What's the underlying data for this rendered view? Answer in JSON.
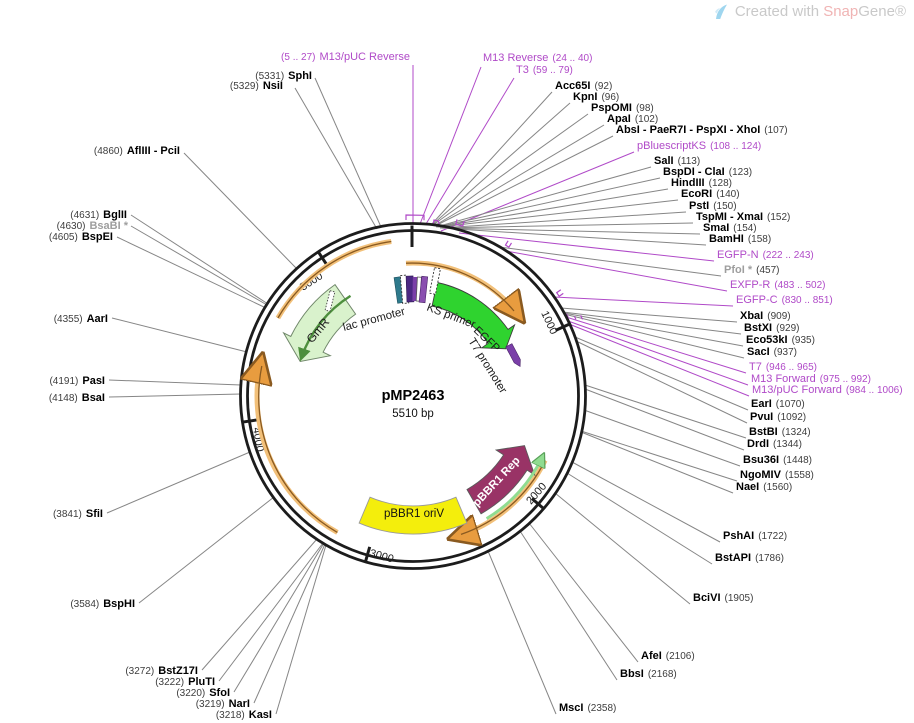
{
  "watermark": {
    "text": "Created with ",
    "brand1": "Snap",
    "brand2": "Gene®"
  },
  "plasmid": {
    "name": "pMP2463",
    "size": "5510 bp"
  },
  "ticks": [
    "1000",
    "2000",
    "3000",
    "4000",
    "5000"
  ],
  "features": {
    "gmr": "GmR",
    "lac_promoter": "lac promoter",
    "ks_primer": "KS primer",
    "egfp": "EGFP",
    "t7_promoter": "T7 promoter",
    "pbbr1_oriv": "pBBR1 oriV",
    "pbbr1_rep": "pBBR1 Rep"
  },
  "colors": {
    "primer_purple": "#b04ac8",
    "egfp_green": "#2fd32f",
    "gmr_green": "#d9f2cc",
    "oriv_yellow": "#f4ee0c",
    "rep_maroon": "#993366",
    "orange_orf": "#f2c079",
    "promoter_purple": "#7a3fa8",
    "teal_bar": "#2e7a8c",
    "ring_black": "#1c1c1c"
  },
  "sites": [
    {
      "name": "M13 Reverse",
      "pos": "(24 .. 40)",
      "kind": "primer"
    },
    {
      "name": "T3",
      "pos": "(59 .. 79)",
      "kind": "primer"
    },
    {
      "name": "Acc65I",
      "pos": "(92)"
    },
    {
      "name": "KpnI",
      "pos": "(96)"
    },
    {
      "name": "PspOMI",
      "pos": "(98)"
    },
    {
      "name": "ApaI",
      "pos": "(102)"
    },
    {
      "name": "AbsI - PaeR7I - PspXI - XhoI",
      "pos": "(107)"
    },
    {
      "name": "pBluescriptKS",
      "pos": "(108 .. 124)",
      "kind": "primer"
    },
    {
      "name": "SalI",
      "pos": "(113)"
    },
    {
      "name": "BspDI - ClaI",
      "pos": "(123)"
    },
    {
      "name": "HindIII",
      "pos": "(128)"
    },
    {
      "name": "EcoRI",
      "pos": "(140)"
    },
    {
      "name": "PstI",
      "pos": "(150)"
    },
    {
      "name": "TspMI - XmaI",
      "pos": "(152)"
    },
    {
      "name": "SmaI",
      "pos": "(154)"
    },
    {
      "name": "BamHI",
      "pos": "(158)"
    },
    {
      "name": "EGFP-N",
      "pos": "(222 .. 243)",
      "kind": "primer"
    },
    {
      "name": "PfoI *",
      "pos": "(457)",
      "kind": "muted"
    },
    {
      "name": "EXFP-R",
      "pos": "(483 .. 502)",
      "kind": "primer"
    },
    {
      "name": "EGFP-C",
      "pos": "(830 .. 851)",
      "kind": "primer"
    },
    {
      "name": "XbaI",
      "pos": "(909)"
    },
    {
      "name": "BstXI",
      "pos": "(929)"
    },
    {
      "name": "Eco53kI",
      "pos": "(935)"
    },
    {
      "name": "SacI",
      "pos": "(937)"
    },
    {
      "name": "T7",
      "pos": "(946 .. 965)",
      "kind": "primer"
    },
    {
      "name": "M13 Forward",
      "pos": "(975 .. 992)",
      "kind": "primer"
    },
    {
      "name": "M13/pUC Forward",
      "pos": "(984 .. 1006)",
      "kind": "primer"
    },
    {
      "name": "EarI",
      "pos": "(1070)"
    },
    {
      "name": "PvuI",
      "pos": "(1092)"
    },
    {
      "name": "BstBI",
      "pos": "(1324)"
    },
    {
      "name": "DrdI",
      "pos": "(1344)"
    },
    {
      "name": "Bsu36I",
      "pos": "(1448)"
    },
    {
      "name": "NgoMIV",
      "pos": "(1558)"
    },
    {
      "name": "NaeI",
      "pos": "(1560)"
    },
    {
      "name": "PshAI",
      "pos": "(1722)"
    },
    {
      "name": "BstAPI",
      "pos": "(1786)"
    },
    {
      "name": "BciVI",
      "pos": "(1905)"
    },
    {
      "name": "AfeI",
      "pos": "(2106)"
    },
    {
      "name": "BbsI",
      "pos": "(2168)"
    },
    {
      "name": "MscI",
      "pos": "(2358)"
    },
    {
      "name": "KasI",
      "pos": "(3218)"
    },
    {
      "name": "NarI",
      "pos": "(3219)"
    },
    {
      "name": "SfoI",
      "pos": "(3220)"
    },
    {
      "name": "PluTI",
      "pos": "(3222)"
    },
    {
      "name": "BstZ17I",
      "pos": "(3272)"
    },
    {
      "name": "BspHI",
      "pos": "(3584)"
    },
    {
      "name": "SfiI",
      "pos": "(3841)"
    },
    {
      "name": "BsaI",
      "pos": "(4148)"
    },
    {
      "name": "PasI",
      "pos": "(4191)"
    },
    {
      "name": "AarI",
      "pos": "(4355)"
    },
    {
      "name": "BspEI",
      "pos": "(4605)"
    },
    {
      "name": "BsaBI *",
      "pos": "(4630)",
      "kind": "muted"
    },
    {
      "name": "BglII",
      "pos": "(4631)"
    },
    {
      "name": "AflIII - PciI",
      "pos": "(4860)"
    },
    {
      "name": "NsiI",
      "pos": "(5329)"
    },
    {
      "name": "SphI",
      "pos": "(5331)"
    },
    {
      "name": "M13/pUC Reverse",
      "pos": "(5 .. 27)",
      "kind": "primer"
    }
  ]
}
